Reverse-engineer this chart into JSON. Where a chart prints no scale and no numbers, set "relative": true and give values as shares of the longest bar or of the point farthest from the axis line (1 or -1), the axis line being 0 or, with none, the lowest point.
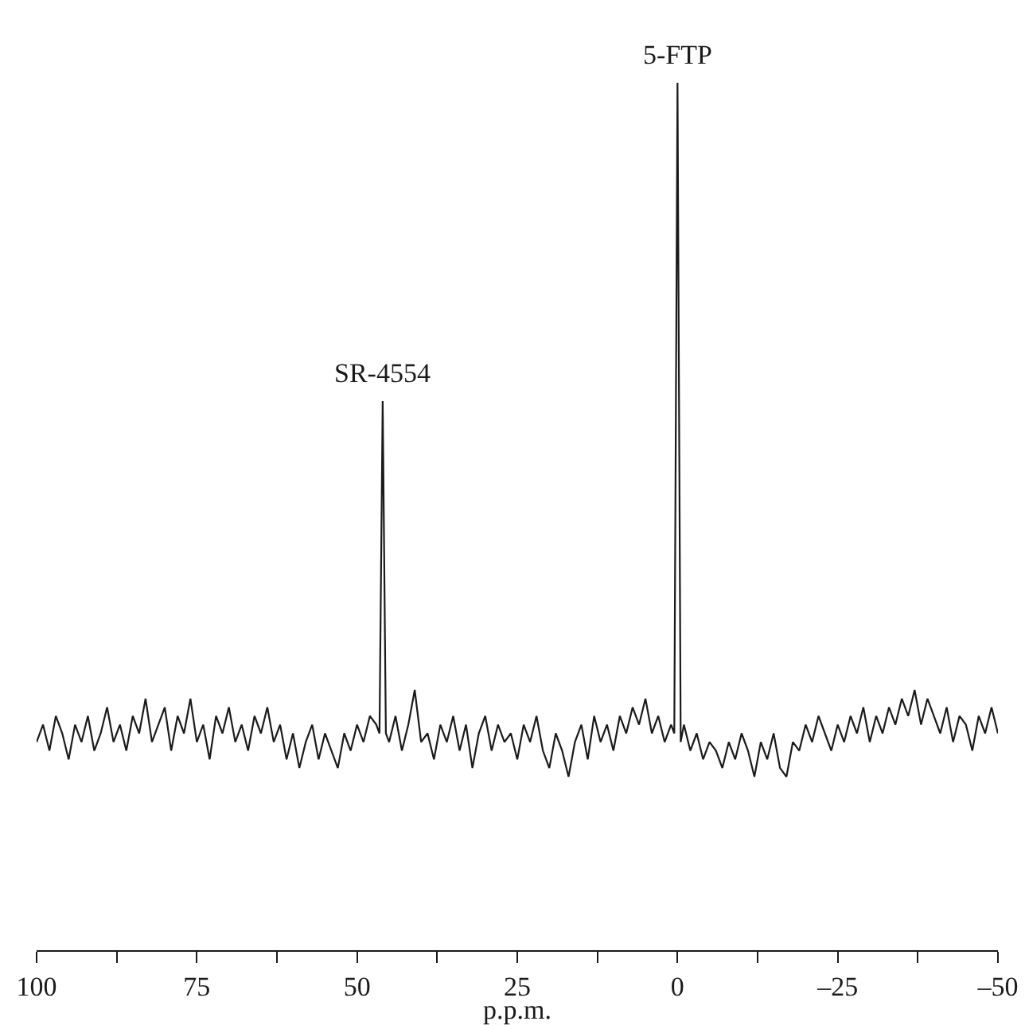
{
  "chart_data": {
    "type": "line",
    "relative": true,
    "xlabel": "p.p.m.",
    "xlim": [
      100,
      -50
    ],
    "xticks": [
      100,
      {
        "value": 87.5,
        "label": null
      },
      75,
      {
        "value": 62.5,
        "label": null
      },
      50,
      {
        "value": 37.5,
        "label": null
      },
      25,
      {
        "value": 12.5,
        "label": null
      },
      0,
      {
        "value": -12.5,
        "label": null
      },
      {
        "value": -25,
        "label": "–25"
      },
      {
        "value": -37.5,
        "label": null
      },
      {
        "value": -50,
        "label": "–50"
      }
    ],
    "grid": false,
    "tick_labels": "x",
    "marker": "none",
    "line_style": "solid",
    "annotations": [
      {
        "text": "SR-4554",
        "x": 46,
        "y": 0.633
      },
      {
        "text": "5-FTP",
        "x": 0,
        "y": 1
      }
    ],
    "series": [
      {
        "color": "#1a1a1a",
        "x": [
          100,
          99,
          98,
          97,
          96,
          95,
          94,
          93,
          92,
          91,
          90,
          89,
          88,
          87,
          86,
          85,
          84,
          83,
          82,
          81,
          80,
          79,
          78,
          77,
          76,
          75,
          74,
          73,
          72,
          71,
          70,
          69,
          68,
          67,
          66,
          65,
          64,
          63,
          62,
          61,
          60,
          59,
          58,
          57,
          56,
          55,
          54,
          53,
          52,
          51,
          50,
          49,
          48,
          47,
          46.5,
          46,
          45.5,
          45,
          44,
          43,
          42,
          41,
          40,
          39,
          38,
          37,
          36,
          35,
          34,
          33,
          32,
          31,
          30,
          29,
          28,
          27,
          26,
          25,
          24,
          23,
          22,
          21,
          20,
          19,
          18,
          17,
          16,
          15,
          14,
          13,
          12,
          11,
          10,
          9,
          8,
          7,
          6,
          5,
          4,
          3,
          2,
          1,
          0.5,
          0,
          -0.5,
          -1,
          -2,
          -3,
          -4,
          -5,
          -6,
          -7,
          -8,
          -9,
          -10,
          -11,
          -12,
          -13,
          -14,
          -15,
          -16,
          -17,
          -18,
          -19,
          -20,
          -21,
          -22,
          -23,
          -24,
          -25,
          -26,
          -27,
          -28,
          -29,
          -30,
          -31,
          -32,
          -33,
          -34,
          -35,
          -36,
          -37,
          -38,
          -39,
          -40,
          -41,
          -42,
          -43,
          -44,
          -45,
          -46,
          -47,
          -48,
          -49,
          -50
        ],
        "values": [
          0.24,
          0.26,
          0.23,
          0.27,
          0.25,
          0.22,
          0.26,
          0.24,
          0.27,
          0.23,
          0.25,
          0.28,
          0.24,
          0.26,
          0.23,
          0.27,
          0.25,
          0.29,
          0.24,
          0.26,
          0.28,
          0.23,
          0.27,
          0.25,
          0.29,
          0.24,
          0.26,
          0.22,
          0.27,
          0.25,
          0.28,
          0.24,
          0.26,
          0.23,
          0.27,
          0.25,
          0.28,
          0.24,
          0.26,
          0.22,
          0.25,
          0.21,
          0.24,
          0.26,
          0.22,
          0.25,
          0.23,
          0.21,
          0.25,
          0.23,
          0.26,
          0.24,
          0.27,
          0.26,
          0.25,
          0.633,
          0.25,
          0.24,
          0.27,
          0.23,
          0.26,
          0.3,
          0.24,
          0.25,
          0.22,
          0.26,
          0.24,
          0.27,
          0.23,
          0.26,
          0.21,
          0.25,
          0.27,
          0.23,
          0.26,
          0.24,
          0.25,
          0.22,
          0.26,
          0.24,
          0.27,
          0.23,
          0.21,
          0.25,
          0.23,
          0.2,
          0.24,
          0.26,
          0.22,
          0.27,
          0.24,
          0.26,
          0.23,
          0.27,
          0.25,
          0.28,
          0.26,
          0.29,
          0.25,
          0.27,
          0.24,
          0.26,
          0.25,
          1,
          0.24,
          0.26,
          0.23,
          0.25,
          0.22,
          0.24,
          0.23,
          0.21,
          0.24,
          0.22,
          0.25,
          0.23,
          0.2,
          0.24,
          0.22,
          0.25,
          0.21,
          0.2,
          0.24,
          0.23,
          0.26,
          0.24,
          0.27,
          0.25,
          0.23,
          0.26,
          0.24,
          0.27,
          0.25,
          0.28,
          0.24,
          0.27,
          0.25,
          0.28,
          0.26,
          0.29,
          0.27,
          0.3,
          0.26,
          0.29,
          0.27,
          0.25,
          0.28,
          0.24,
          0.27,
          0.26,
          0.23,
          0.27,
          0.25,
          0.28,
          0.25
        ]
      }
    ]
  }
}
